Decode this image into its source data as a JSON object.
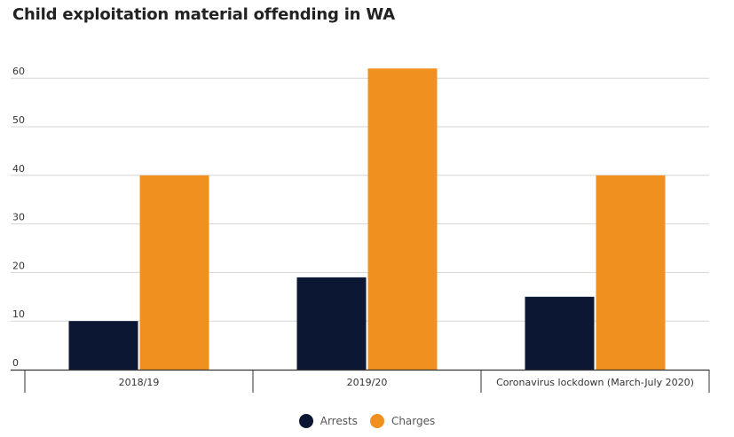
{
  "title": "Child exploitation material offending in WA",
  "chart_data": {
    "type": "bar",
    "categories": [
      "2018/19",
      "2019/20",
      "Coronavirus lockdown (March-July 2020)"
    ],
    "series": [
      {
        "name": "Arrests",
        "values": [
          10,
          19,
          15
        ],
        "color": "#0b1733"
      },
      {
        "name": "Charges",
        "values": [
          40,
          62,
          40
        ],
        "color": "#f0901e"
      }
    ],
    "yticks": [
      0,
      10,
      20,
      30,
      40,
      50,
      60
    ],
    "ylim": [
      0,
      62
    ],
    "grid": true,
    "legend_position": "bottom-center"
  }
}
